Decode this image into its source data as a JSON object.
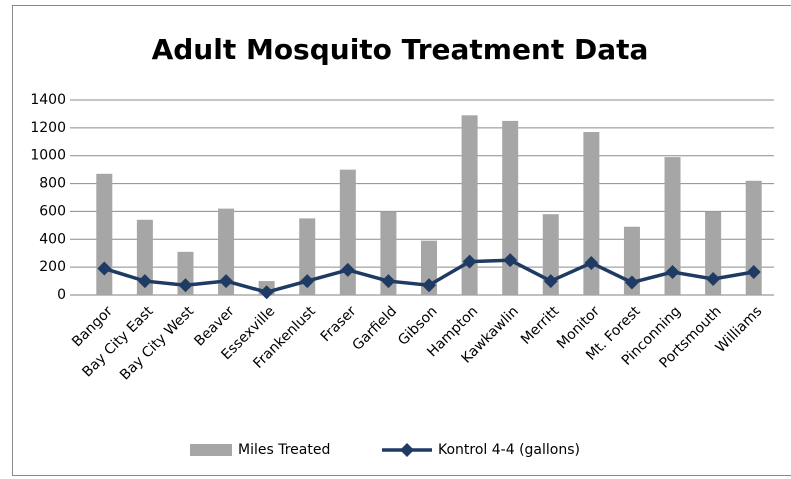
{
  "chart_data": {
    "type": "combo",
    "title": "Adult Mosquito Treatment Data",
    "categories": [
      "Bangor",
      "Bay City East",
      "Bay City West",
      "Beaver",
      "Essexville",
      "Frankenlust",
      "Fraser",
      "Garfield",
      "Gibson",
      "Hampton",
      "Kawkawlin",
      "Merritt",
      "Monitor",
      "Mt. Forest",
      "Pinconning",
      "Portsmouth",
      "Williams"
    ],
    "series": [
      {
        "name": "Miles Treated",
        "type": "bar",
        "color": "#a6a6a6",
        "values": [
          870,
          540,
          310,
          620,
          100,
          550,
          900,
          600,
          390,
          1290,
          1250,
          580,
          1170,
          490,
          990,
          600,
          820
        ]
      },
      {
        "name": "Kontrol 4-4 (gallons)",
        "type": "line",
        "color": "#1f3b63",
        "values": [
          190,
          100,
          70,
          100,
          20,
          100,
          180,
          100,
          70,
          240,
          250,
          100,
          230,
          90,
          165,
          115,
          165
        ]
      }
    ],
    "ylim": [
      0,
      1400
    ],
    "yticks": [
      0,
      200,
      400,
      600,
      800,
      1000,
      1200,
      1400
    ],
    "grid": true,
    "legend": "bottom"
  }
}
